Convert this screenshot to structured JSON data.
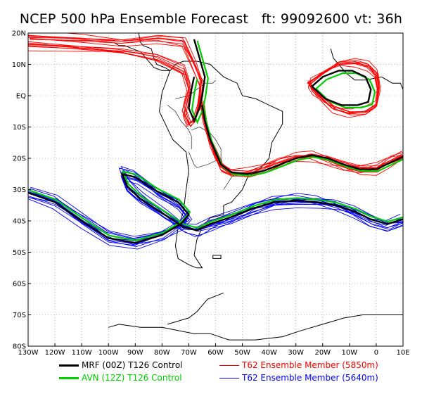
{
  "title": "NCEP 500 hPa Ensemble Forecast   ft: 99092600 vt: 36h",
  "map": {
    "lon_range": [
      -130,
      10
    ],
    "lat_range": [
      -80,
      20
    ],
    "lat_ticks": [
      "20N",
      "10N",
      "EQ",
      "10S",
      "20S",
      "30S",
      "40S",
      "50S",
      "60S",
      "70S",
      "80S"
    ],
    "lon_ticks": [
      "130W",
      "120W",
      "110W",
      "100W",
      "90W",
      "80W",
      "70W",
      "60W",
      "50W",
      "40W",
      "30W",
      "20W",
      "10W",
      "0",
      "10E"
    ],
    "colors": {
      "mrf": "#000000",
      "avn": "#00cc00",
      "ens_5850": "#ff0000",
      "ens_5640": "#0000ff",
      "coast": "#000000"
    }
  },
  "legend": {
    "mrf": "MRF (00Z) T126 Control",
    "avn": "AVN (12Z) T126 Control",
    "ens_5850": "T62 Ensemble Member (5850m)",
    "ens_5640": "T62 Ensemble Member (5640m)"
  }
}
